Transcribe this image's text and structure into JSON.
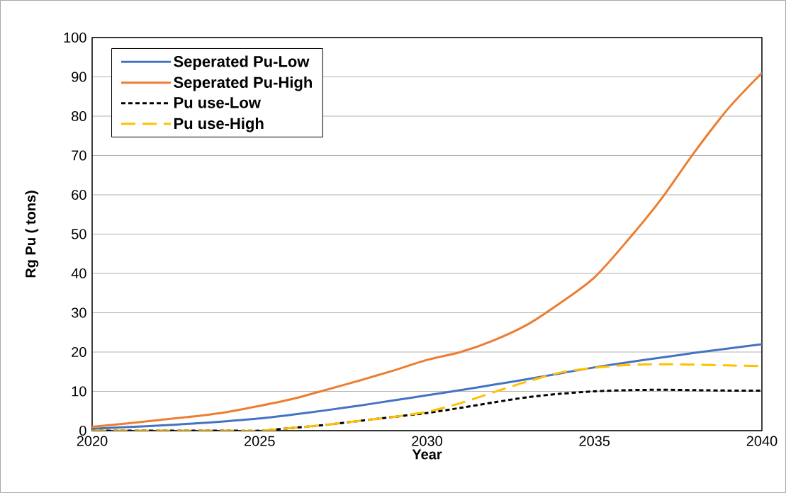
{
  "chart_data": {
    "type": "line",
    "xlabel": "Year",
    "ylabel": "Rg Pu ( tons)",
    "x": [
      2020,
      2021,
      2022,
      2023,
      2024,
      2025,
      2026,
      2027,
      2028,
      2029,
      2030,
      2031,
      2032,
      2033,
      2034,
      2035,
      2036,
      2037,
      2038,
      2039,
      2040
    ],
    "series": [
      {
        "name": "Seperated Pu-Low",
        "color": "#4472c4",
        "line_style": "solid",
        "values": [
          0.5,
          0.9,
          1.3,
          1.8,
          2.4,
          3.1,
          4.1,
          5.2,
          6.4,
          7.7,
          9.0,
          10.3,
          11.7,
          13.1,
          14.6,
          16.1,
          17.4,
          18.6,
          19.8,
          20.9,
          22.0
        ]
      },
      {
        "name": "Seperated Pu-High",
        "color": "#ed7d31",
        "line_style": "solid",
        "values": [
          1.0,
          1.8,
          2.7,
          3.6,
          4.7,
          6.3,
          8.1,
          10.4,
          12.8,
          15.3,
          18.0,
          20.0,
          23.0,
          27.0,
          32.6,
          39.0,
          48.5,
          59.0,
          71.0,
          82.0,
          91.0
        ]
      },
      {
        "name": "Pu use-Low",
        "color": "#000000",
        "line_style": "dotted",
        "values": [
          0,
          0,
          0,
          0,
          0,
          0,
          0.7,
          1.5,
          2.5,
          3.5,
          4.5,
          5.8,
          7.2,
          8.5,
          9.4,
          10.0,
          10.3,
          10.4,
          10.3,
          10.2,
          10.2
        ]
      },
      {
        "name": "Pu use-High",
        "color": "#ffc000",
        "line_style": "dashed",
        "values": [
          0,
          0,
          0,
          0,
          0,
          0,
          0.7,
          1.5,
          2.5,
          3.5,
          4.8,
          7.0,
          9.8,
          12.5,
          14.8,
          16.0,
          16.7,
          16.9,
          16.8,
          16.6,
          16.4
        ]
      }
    ],
    "xlim": [
      2020,
      2040
    ],
    "xticks": [
      2020,
      2025,
      2030,
      2035,
      2040
    ],
    "ylim": [
      0,
      100
    ],
    "yticks": [
      0,
      10,
      20,
      30,
      40,
      50,
      60,
      70,
      80,
      90,
      100
    ],
    "grid": "y",
    "legend": "top left"
  }
}
